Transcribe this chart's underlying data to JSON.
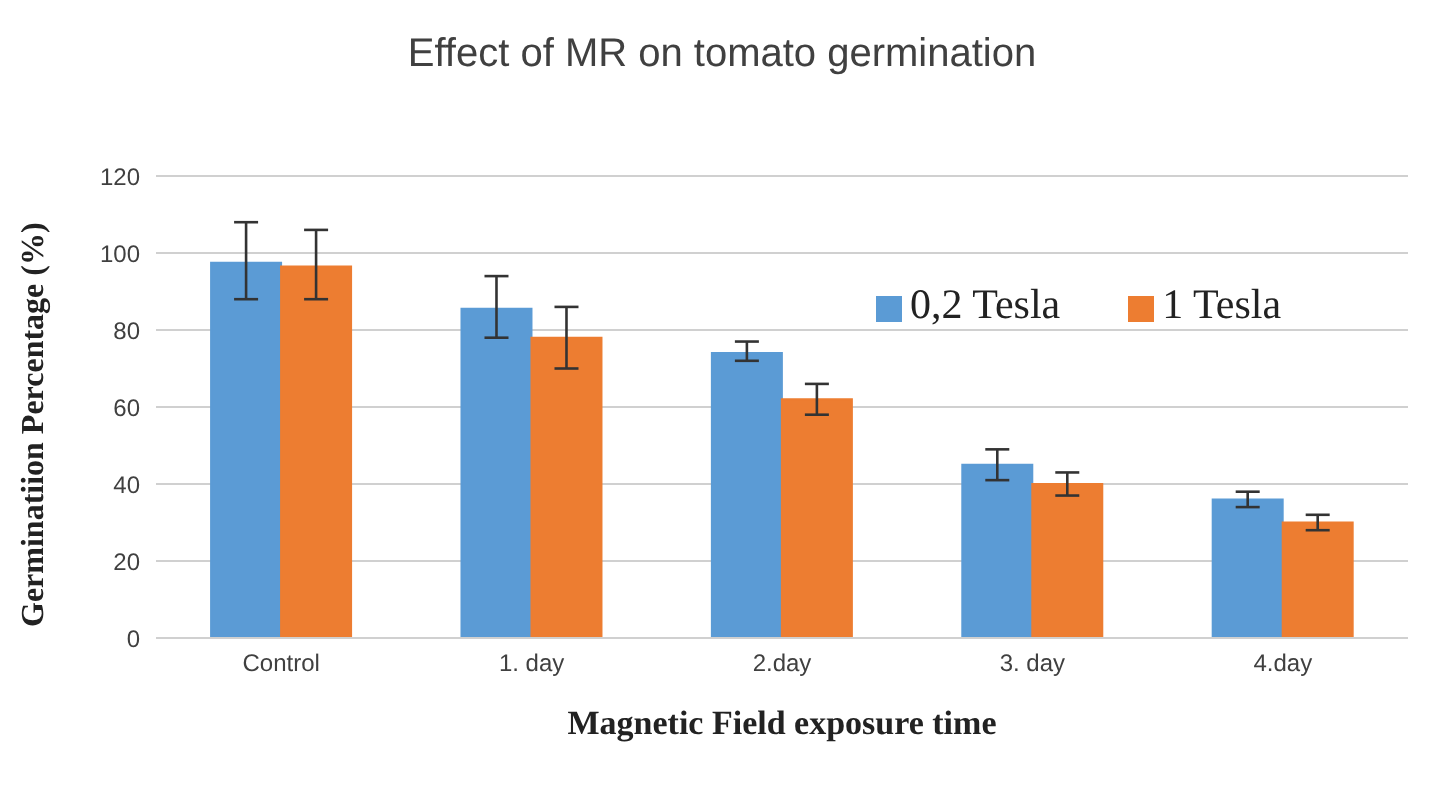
{
  "chart_data": {
    "type": "bar",
    "title": "Effect of MR on tomato germination",
    "xlabel": "Magnetic Field  exposure time",
    "ylabel": "Germinatiion  Percentage (%)",
    "categories": [
      "Control",
      "1. day",
      "2.day",
      "3. day",
      "4.day"
    ],
    "series": [
      {
        "name": "0,2 Tesla",
        "color": "#5b9bd5",
        "values": [
          97.5,
          85.5,
          74,
          45,
          36
        ],
        "errors": [
          [
            88,
            108
          ],
          [
            78,
            94
          ],
          [
            72,
            77
          ],
          [
            41,
            49
          ],
          [
            34,
            38
          ]
        ]
      },
      {
        "name": "1 Tesla",
        "color": "#ed7d31",
        "values": [
          96.5,
          78,
          62,
          40,
          30
        ],
        "errors": [
          [
            88,
            106
          ],
          [
            70,
            86
          ],
          [
            58,
            66
          ],
          [
            37,
            43
          ],
          [
            28,
            32
          ]
        ]
      }
    ],
    "ylim": [
      0,
      120
    ],
    "yticks": [
      0,
      20,
      40,
      60,
      80,
      100,
      120
    ],
    "grid": "y",
    "legend": "top right"
  }
}
